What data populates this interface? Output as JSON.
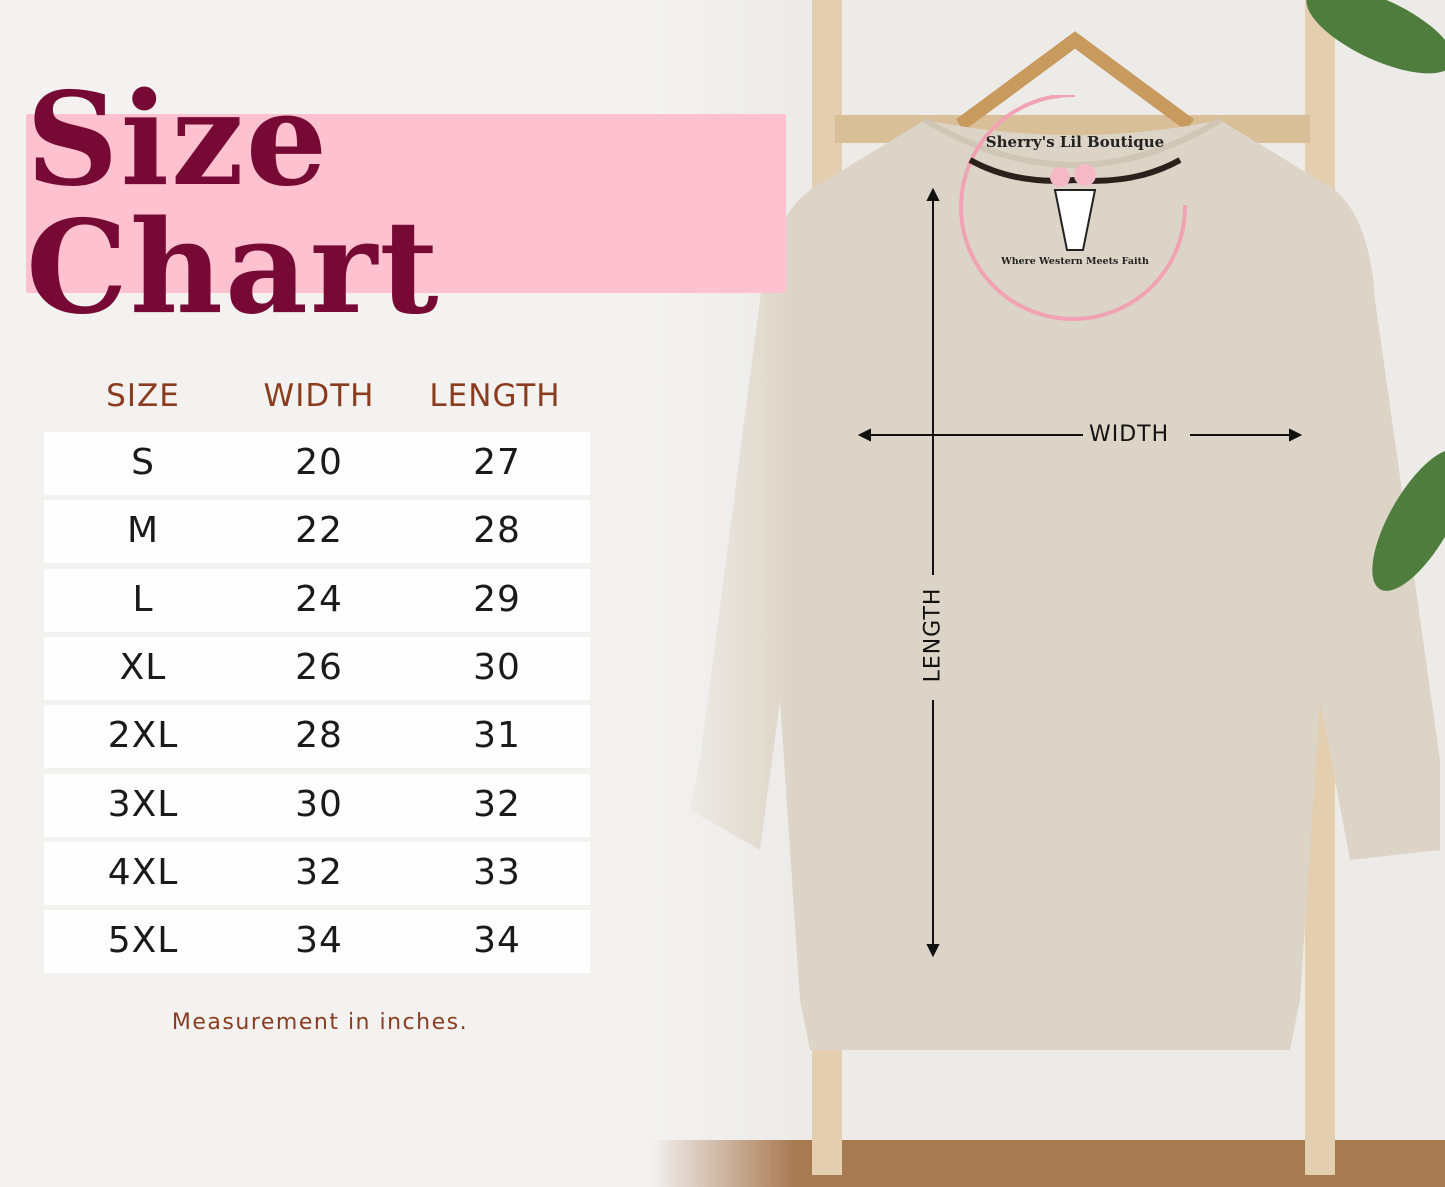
{
  "title": "Size Chart",
  "table": {
    "headers": [
      "SIZE",
      "WIDTH",
      "LENGTH"
    ],
    "rows": [
      {
        "size": "S",
        "width": "20",
        "length": "27"
      },
      {
        "size": "M",
        "width": "22",
        "length": "28"
      },
      {
        "size": "L",
        "width": "24",
        "length": "29"
      },
      {
        "size": "XL",
        "width": "26",
        "length": "30"
      },
      {
        "size": "2XL",
        "width": "28",
        "length": "31"
      },
      {
        "size": "3XL",
        "width": "30",
        "length": "32"
      },
      {
        "size": "4XL",
        "width": "32",
        "length": "33"
      },
      {
        "size": "5XL",
        "width": "34",
        "length": "34"
      }
    ]
  },
  "footnote": "Measurement in inches.",
  "logo": {
    "name": "Sherry's Lil Boutique",
    "tagline": "Where Western Meets Faith"
  },
  "diagram": {
    "width_label": "WIDTH",
    "length_label": "LENGTH"
  },
  "colors": {
    "title_bg": "#fec1cf",
    "title_text": "#760a35",
    "header_text": "#8a3d1e",
    "garment": "#dcd4c6"
  }
}
